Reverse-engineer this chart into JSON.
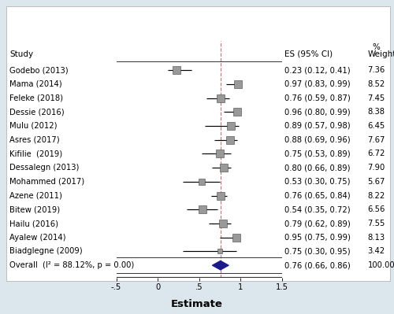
{
  "studies": [
    {
      "name": "Godebo (2013)",
      "es": 0.23,
      "ci_lo": 0.12,
      "ci_hi": 0.41,
      "weight": 7.36
    },
    {
      "name": "Mama (2014)",
      "es": 0.97,
      "ci_lo": 0.83,
      "ci_hi": 0.99,
      "weight": 8.52
    },
    {
      "name": "Feleke (2018)",
      "es": 0.76,
      "ci_lo": 0.59,
      "ci_hi": 0.87,
      "weight": 7.45
    },
    {
      "name": "Dessie (2016)",
      "es": 0.96,
      "ci_lo": 0.8,
      "ci_hi": 0.99,
      "weight": 8.38
    },
    {
      "name": "Mulu (2012)",
      "es": 0.89,
      "ci_lo": 0.57,
      "ci_hi": 0.98,
      "weight": 6.45
    },
    {
      "name": "Asres (2017)",
      "es": 0.88,
      "ci_lo": 0.69,
      "ci_hi": 0.96,
      "weight": 7.67
    },
    {
      "name": "Kifilie  (2019)",
      "es": 0.75,
      "ci_lo": 0.53,
      "ci_hi": 0.89,
      "weight": 6.72
    },
    {
      "name": "Dessalegn (2013)",
      "es": 0.8,
      "ci_lo": 0.66,
      "ci_hi": 0.89,
      "weight": 7.9
    },
    {
      "name": "Mohammed (2017)",
      "es": 0.53,
      "ci_lo": 0.3,
      "ci_hi": 0.75,
      "weight": 5.67
    },
    {
      "name": "Azene (2011)",
      "es": 0.76,
      "ci_lo": 0.65,
      "ci_hi": 0.84,
      "weight": 8.22
    },
    {
      "name": "Bitew (2019)",
      "es": 0.54,
      "ci_lo": 0.35,
      "ci_hi": 0.72,
      "weight": 6.56
    },
    {
      "name": "Hailu (2016)",
      "es": 0.79,
      "ci_lo": 0.62,
      "ci_hi": 0.89,
      "weight": 7.55
    },
    {
      "name": "Ayalew (2014)",
      "es": 0.95,
      "ci_lo": 0.75,
      "ci_hi": 0.99,
      "weight": 8.13
    },
    {
      "name": "Biadglegne (2009)",
      "es": 0.75,
      "ci_lo": 0.3,
      "ci_hi": 0.95,
      "weight": 3.42
    }
  ],
  "overall": {
    "es": 0.76,
    "ci_lo": 0.66,
    "ci_hi": 0.86,
    "label": "Overall  (I² = 88.12%, p = 0.00)",
    "weight": 100.0
  },
  "ref_line": 0.76,
  "xlim": [
    -0.5,
    1.5
  ],
  "xticks": [
    -0.5,
    0.0,
    0.5,
    1.0,
    1.5
  ],
  "xticklabels": [
    "-.5",
    "0",
    ".5",
    "1",
    "1.5"
  ],
  "xlabel": "Estimate",
  "col_es_label": "ES (95% CI)",
  "col_weight_label": "Weight",
  "col_pct_label": "%",
  "study_label": "Study",
  "bg_color": "#dce6ed",
  "panel_color": "#ffffff",
  "diamond_color": "#1a1a8c",
  "dashed_line_color": "#c87878",
  "ci_line_color": "#000000",
  "marker_facecolor": "#999999",
  "marker_edgecolor": "#444444",
  "text_color": "#000000",
  "font_size": 7.2,
  "header_font_size": 7.5,
  "xlabel_font_size": 9.5
}
